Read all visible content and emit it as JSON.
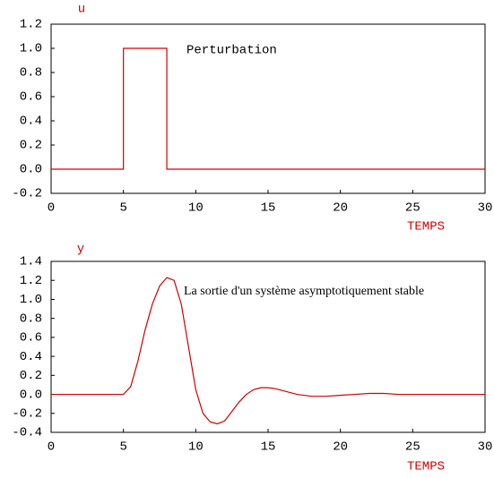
{
  "chart_data": [
    {
      "type": "line",
      "ylabel": "u",
      "xlabel": "TEMPS",
      "annotation": "Perturbation",
      "x": [
        0,
        5,
        5,
        8,
        8,
        30
      ],
      "values": [
        0,
        0,
        1,
        1,
        0,
        0
      ],
      "color": "#d00000",
      "xlim": [
        0,
        30
      ],
      "ylim": [
        -0.2,
        1.2
      ],
      "xticks": [
        0,
        5,
        10,
        15,
        20,
        25,
        30
      ],
      "yticks": [
        -0.2,
        {
          "value": 0,
          "label": "0.0"
        },
        0.2,
        0.4,
        0.6,
        0.8,
        {
          "value": 1,
          "label": "1.0"
        },
        1.2
      ]
    },
    {
      "type": "line",
      "ylabel": "y",
      "xlabel": "TEMPS",
      "annotation": "La sortie d'un système asymptotiquement stable",
      "x": [
        0,
        5,
        5.5,
        6,
        6.5,
        7,
        7.5,
        8,
        8.5,
        9,
        9.5,
        10,
        10.5,
        11,
        11.5,
        12,
        12.5,
        13,
        13.5,
        14,
        14.5,
        15,
        15.5,
        16,
        17,
        18,
        19,
        20,
        21,
        22,
        23,
        24,
        26,
        28,
        30
      ],
      "values": [
        0,
        0,
        0.08,
        0.35,
        0.68,
        0.95,
        1.14,
        1.23,
        1.2,
        0.95,
        0.5,
        0.05,
        -0.2,
        -0.29,
        -0.31,
        -0.28,
        -0.18,
        -0.08,
        0,
        0.05,
        0.07,
        0.07,
        0.06,
        0.04,
        0,
        -0.02,
        -0.02,
        -0.01,
        0,
        0.01,
        0.01,
        0,
        0,
        0,
        0
      ],
      "color": "#d00000",
      "xlim": [
        0,
        30
      ],
      "ylim": [
        -0.4,
        1.4
      ],
      "xticks": [
        0,
        5,
        10,
        15,
        20,
        25,
        30
      ],
      "yticks": [
        -0.4,
        -0.2,
        {
          "value": 0,
          "label": "0.0"
        },
        0.2,
        0.4,
        0.6,
        0.8,
        {
          "value": 1,
          "label": "1.0"
        },
        1.2,
        1.4
      ]
    }
  ]
}
